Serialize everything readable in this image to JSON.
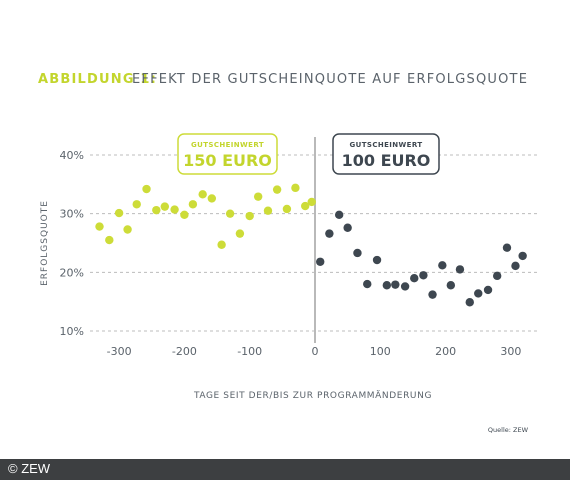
{
  "chart_data": {
    "type": "scatter",
    "title_prefix": "ABBILDUNG 1:",
    "title": "EFFEKT DER GUTSCHEINQUOTE AUF ERFOLGSQUOTE",
    "xlabel": "TAGE SEIT DER/BIS ZUR PROGRAMMÄNDERUNG",
    "ylabel": "ERFOLGSQUOTE",
    "source": "Quelle: ZEW",
    "xlim": [
      -350,
      350
    ],
    "ylim": [
      10,
      40
    ],
    "x_ticks": [
      -300,
      -200,
      -100,
      0,
      100,
      200,
      300
    ],
    "x_tick_labels": [
      "-300",
      "-200",
      "-100",
      "0",
      "100",
      "200",
      "300"
    ],
    "y_ticks": [
      10,
      20,
      30,
      40
    ],
    "y_tick_labels": [
      "10%",
      "20%",
      "30%",
      "40%"
    ],
    "grid": "horizontal dashed",
    "cutoff_x": 0,
    "series": [
      {
        "name": "150 EURO",
        "label_small": "GUTSCHEINWERT",
        "label_big": "150 EURO",
        "color": "#cddc38",
        "x": [
          -330,
          -315,
          -300,
          -287,
          -273,
          -258,
          -243,
          -230,
          -215,
          -200,
          -187,
          -172,
          -158,
          -143,
          -130,
          -115,
          -100,
          -87,
          -72,
          -58,
          -43,
          -30,
          -15,
          -5
        ],
        "y": [
          27.8,
          25.5,
          30.1,
          27.3,
          31.6,
          34.2,
          30.6,
          31.2,
          30.7,
          29.8,
          31.6,
          33.3,
          32.6,
          24.7,
          30.0,
          26.6,
          29.6,
          32.9,
          30.5,
          34.1,
          30.8,
          34.4,
          31.3,
          32.0
        ]
      },
      {
        "name": "100 EURO",
        "label_small": "GUTSCHEINWERT",
        "label_big": "100 EURO",
        "color": "#3e4750",
        "x": [
          8,
          22,
          37,
          50,
          65,
          80,
          95,
          110,
          123,
          138,
          152,
          166,
          180,
          195,
          208,
          222,
          237,
          250,
          265,
          279,
          294,
          307,
          318
        ],
        "y": [
          21.8,
          26.6,
          29.8,
          27.6,
          23.3,
          18.0,
          22.1,
          17.8,
          17.9,
          17.6,
          19.0,
          19.5,
          16.2,
          21.2,
          17.8,
          20.5,
          14.9,
          16.4,
          17.0,
          19.4,
          24.2,
          21.1,
          22.8
        ]
      }
    ]
  },
  "footer": {
    "copyright": "© ZEW"
  }
}
